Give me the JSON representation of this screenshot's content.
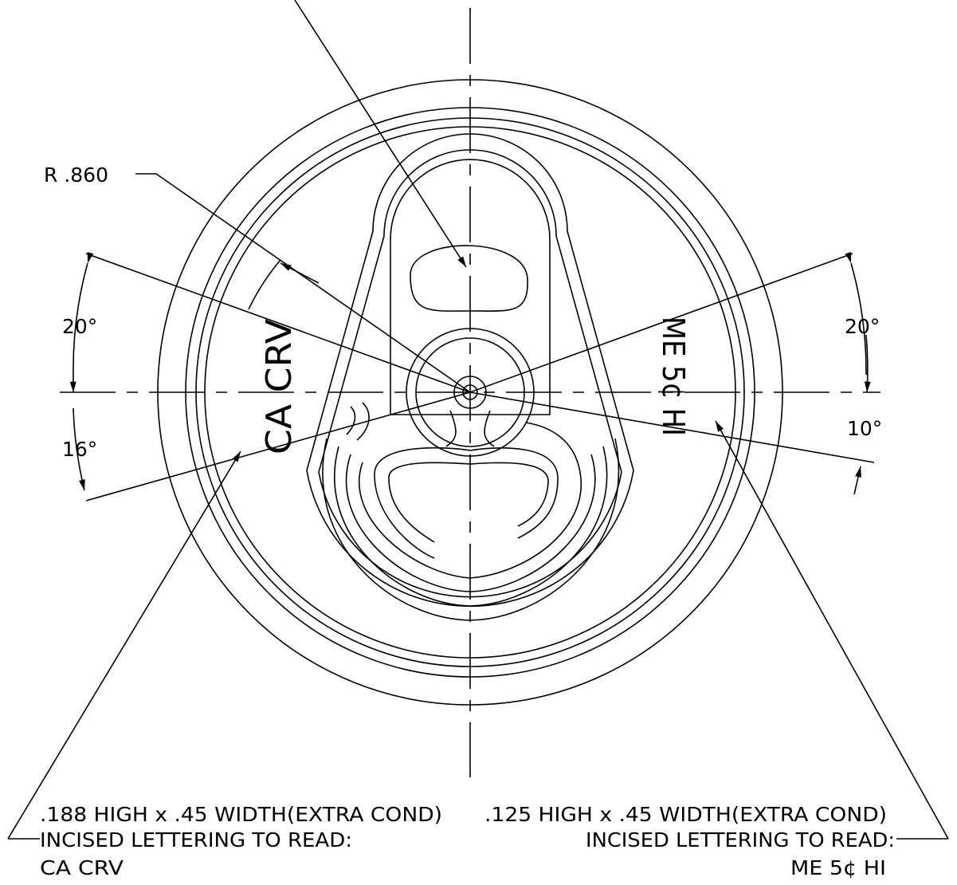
{
  "dimensions": {
    "radius": "R .860",
    "angle_left_upper": "20°",
    "angle_left_lower": "16°",
    "angle_right_upper": "20°",
    "angle_right_lower": "10°"
  },
  "lettering": {
    "left": "CA CRV",
    "right": "ME 5¢ HI"
  },
  "notes": {
    "left": [
      ".188 HIGH x .45 WIDTH(EXTRA COND)",
      "INCISED LETTERING TO READ:",
      "CA CRV"
    ],
    "right": [
      ".125 HIGH x .45 WIDTH(EXTRA COND)",
      "INCISED LETTERING TO READ:",
      "ME 5¢ HI"
    ]
  }
}
